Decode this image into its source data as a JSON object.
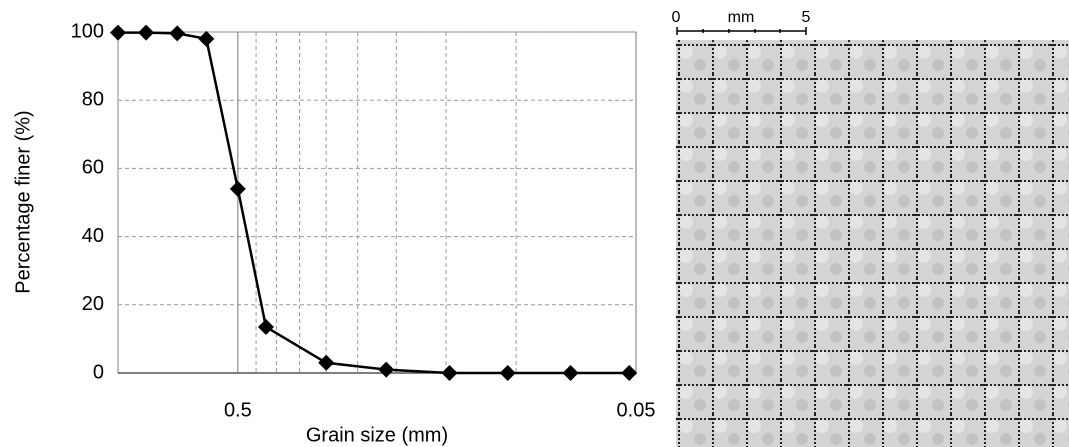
{
  "chart_data": {
    "type": "line",
    "x_label": "Grain size (mm)",
    "y_label": "Percentage finer (%)",
    "x": [
      1.0,
      0.85,
      0.71,
      0.6,
      0.5,
      0.425,
      0.3,
      0.212,
      0.147,
      0.105,
      0.073,
      0.052
    ],
    "values": [
      99.8,
      99.8,
      99.6,
      98,
      54,
      13.5,
      3,
      1,
      0,
      0,
      0,
      0
    ],
    "color": "#000000",
    "xlim": [
      1,
      0.05
    ],
    "xticks": [
      0.5,
      0.05
    ],
    "log_x": true,
    "xgrid": [
      0.45,
      0.4,
      0.35,
      0.3,
      0.25,
      0.2,
      0.15,
      0.1
    ],
    "ylim": [
      0,
      100
    ],
    "yticks": [
      0,
      20,
      40,
      60,
      80,
      100
    ],
    "grid": true
  },
  "scale_bar": {
    "start": "0",
    "unit": "mm",
    "end": "5"
  }
}
